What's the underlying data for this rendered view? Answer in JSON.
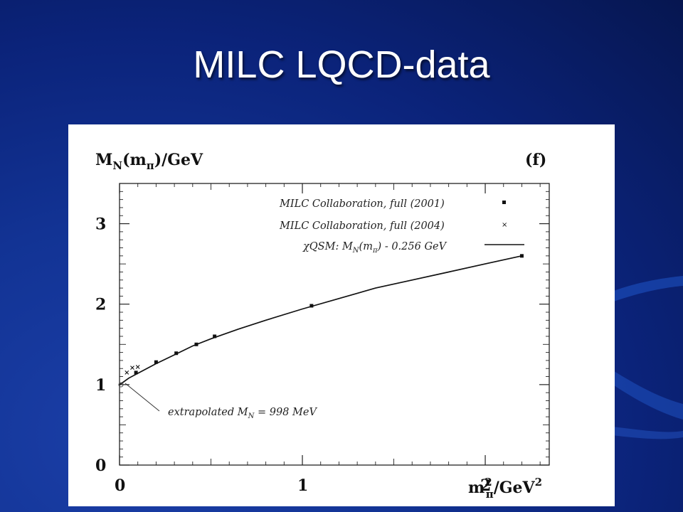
{
  "slide": {
    "title": "MILC LQCD-data"
  },
  "colors": {
    "background": "#0b237a",
    "title_text": "#ffffff",
    "plot_background": "#ffffff",
    "plot_ink": "#111111"
  },
  "chart_data": {
    "type": "scatter",
    "ylabel": {
      "main": "M",
      "sub1": "N",
      "mid": "(m",
      "sub2": "π",
      "tail": ")/GeV"
    },
    "xlabel": {
      "main": "m",
      "sup1": "2",
      "sub1": "π",
      "tail": "/GeV",
      "sup2": "2"
    },
    "panel_label": "(f)",
    "xlim": [
      0,
      2.35
    ],
    "ylim": [
      0,
      3.5
    ],
    "x_ticks": [
      0,
      1,
      2
    ],
    "y_ticks": [
      0,
      1,
      2,
      3
    ],
    "legend": {
      "placement": "top-right",
      "entries": [
        {
          "label": "MILC Collaboration,  full (2001)",
          "marker": "square"
        },
        {
          "label": "MILC Collaboration,  full (2004)",
          "marker": "cross"
        },
        {
          "label": "χQSM:  M_N(m_π) - 0.256 GeV",
          "marker": "line",
          "parts": {
            "a": "χQSM:  M",
            "b": "N",
            "c": "(m",
            "d": "π",
            "e": ") - 0.256 GeV"
          }
        }
      ]
    },
    "series": [
      {
        "name": "MILC Collaboration,  full (2001)",
        "marker": "square",
        "points": [
          {
            "x": 0.09,
            "y": 1.15
          },
          {
            "x": 0.2,
            "y": 1.28
          },
          {
            "x": 0.31,
            "y": 1.39
          },
          {
            "x": 0.42,
            "y": 1.5
          },
          {
            "x": 0.52,
            "y": 1.6
          },
          {
            "x": 1.05,
            "y": 1.98
          },
          {
            "x": 2.2,
            "y": 2.6
          }
        ]
      },
      {
        "name": "MILC Collaboration,  full (2004)",
        "marker": "cross",
        "points": [
          {
            "x": 0.04,
            "y": 1.15
          },
          {
            "x": 0.07,
            "y": 1.21
          },
          {
            "x": 0.1,
            "y": 1.22
          }
        ]
      },
      {
        "name": "χQSM:  M_N(m_π) - 0.256 GeV",
        "marker": "line",
        "points": [
          {
            "x": 0.0,
            "y": 0.998
          },
          {
            "x": 0.02,
            "y": 1.03
          },
          {
            "x": 0.05,
            "y": 1.08
          },
          {
            "x": 0.1,
            "y": 1.14
          },
          {
            "x": 0.2,
            "y": 1.26
          },
          {
            "x": 0.3,
            "y": 1.37
          },
          {
            "x": 0.4,
            "y": 1.48
          },
          {
            "x": 0.5,
            "y": 1.57
          },
          {
            "x": 0.65,
            "y": 1.69
          },
          {
            "x": 0.8,
            "y": 1.8
          },
          {
            "x": 1.0,
            "y": 1.94
          },
          {
            "x": 1.2,
            "y": 2.07
          },
          {
            "x": 1.4,
            "y": 2.2
          },
          {
            "x": 1.6,
            "y": 2.3
          },
          {
            "x": 1.8,
            "y": 2.4
          },
          {
            "x": 2.0,
            "y": 2.5
          },
          {
            "x": 2.2,
            "y": 2.6
          }
        ]
      }
    ],
    "annotations": [
      {
        "parts": {
          "a": "extrapolated M",
          "b": "N",
          "c": " = 998 MeV"
        },
        "points_to": {
          "x": 0.0,
          "y": 0.998
        }
      }
    ]
  }
}
